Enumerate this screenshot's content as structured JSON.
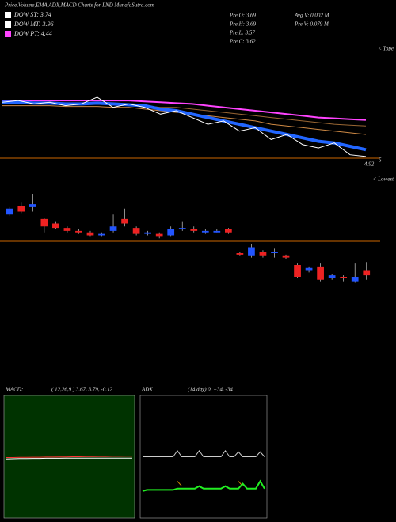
{
  "title": "Price,Volume,EMA,ADX,MACD Charts for LND MunafaSutra.com",
  "legend": [
    {
      "label": "DOW ST: 3.74",
      "color": "#ffffff"
    },
    {
      "label": "DOW MT: 3.96",
      "color": "#ffffff"
    },
    {
      "label": "DOW PT: 4.44",
      "color": "#ff44ff"
    }
  ],
  "info": [
    "Pre  O: 3.69",
    "Pre  H: 3.69",
    "Pre  L: 3.57",
    "Pre  C: 3.62",
    "Avg  V: 0.002  M",
    "Pre   V: 0.079  M"
  ],
  "chart_data": [
    {
      "type": "line",
      "label": "< Tope",
      "ylim": [
        4.85,
        5.55
      ],
      "hline": {
        "value": 4.92,
        "label": "4.92",
        "color": "#cc6600"
      },
      "annotation": "5",
      "series": [
        {
          "color": "#ff44ff",
          "width": 2,
          "values": [
            5.26,
            5.26,
            5.26,
            5.26,
            5.26,
            5.26,
            5.26,
            5.26,
            5.26,
            5.255,
            5.25,
            5.245,
            5.24,
            5.23,
            5.22,
            5.21,
            5.2,
            5.19,
            5.18,
            5.17,
            5.16,
            5.155,
            5.15,
            5.145
          ]
        },
        {
          "color": "#996633",
          "width": 1,
          "values": [
            5.24,
            5.24,
            5.24,
            5.24,
            5.24,
            5.24,
            5.24,
            5.235,
            5.23,
            5.23,
            5.22,
            5.22,
            5.21,
            5.2,
            5.19,
            5.18,
            5.17,
            5.16,
            5.15,
            5.14,
            5.13,
            5.12,
            5.115,
            5.11
          ]
        },
        {
          "color": "#cc8844",
          "width": 1,
          "values": [
            5.23,
            5.23,
            5.23,
            5.23,
            5.225,
            5.225,
            5.225,
            5.22,
            5.22,
            5.21,
            5.2,
            5.19,
            5.18,
            5.17,
            5.16,
            5.15,
            5.14,
            5.12,
            5.11,
            5.1,
            5.09,
            5.08,
            5.07,
            5.06
          ]
        },
        {
          "color": "#2266ff",
          "width": 4,
          "values": [
            5.25,
            5.25,
            5.245,
            5.245,
            5.24,
            5.24,
            5.245,
            5.24,
            5.235,
            5.23,
            5.21,
            5.2,
            5.18,
            5.16,
            5.14,
            5.12,
            5.1,
            5.08,
            5.06,
            5.04,
            5.02,
            5.01,
            4.99,
            4.97
          ]
        },
        {
          "color": "#ffffff",
          "width": 1,
          "values": [
            5.25,
            5.26,
            5.24,
            5.25,
            5.23,
            5.24,
            5.28,
            5.22,
            5.24,
            5.22,
            5.18,
            5.2,
            5.16,
            5.12,
            5.14,
            5.08,
            5.1,
            5.03,
            5.06,
            5,
            4.98,
            5.01,
            4.94,
            4.93
          ]
        }
      ]
    },
    {
      "type": "candlestick",
      "label": "< Lowest",
      "ylim": [
        3.4,
        4.2
      ],
      "hline": {
        "value": 3.8,
        "color": "#cc6600"
      },
      "up_color": "#2255ff",
      "down_color": "#ee2222",
      "open": [
        3.98,
        4.04,
        4.03,
        3.95,
        3.92,
        3.89,
        3.87,
        3.86,
        3.84,
        3.87,
        3.95,
        3.89,
        3.85,
        3.85,
        3.84,
        3.88,
        3.88,
        3.86,
        3.86,
        3.88,
        3.72,
        3.7,
        3.73,
        3.72,
        3.7,
        3.64,
        3.6,
        3.63,
        3.55,
        3.56,
        3.53,
        3.6
      ],
      "high": [
        4.03,
        4.06,
        4.12,
        3.96,
        3.93,
        3.9,
        3.88,
        3.87,
        3.86,
        3.98,
        4.02,
        3.9,
        3.87,
        3.86,
        3.9,
        3.93,
        3.9,
        3.88,
        3.88,
        3.89,
        3.73,
        3.78,
        3.74,
        3.75,
        3.71,
        3.65,
        3.63,
        3.65,
        3.58,
        3.57,
        3.65,
        3.66
      ],
      "low": [
        3.97,
        3.99,
        4,
        3.86,
        3.88,
        3.86,
        3.85,
        3.83,
        3.83,
        3.86,
        3.9,
        3.84,
        3.84,
        3.82,
        3.83,
        3.87,
        3.86,
        3.85,
        3.86,
        3.85,
        3.7,
        3.69,
        3.69,
        3.69,
        3.68,
        3.55,
        3.59,
        3.53,
        3.54,
        3.53,
        3.52,
        3.54
      ],
      "close": [
        4.02,
        4,
        4.05,
        3.9,
        3.89,
        3.87,
        3.86,
        3.84,
        3.85,
        3.9,
        3.92,
        3.85,
        3.86,
        3.83,
        3.88,
        3.89,
        3.87,
        3.87,
        3.87,
        3.86,
        3.71,
        3.76,
        3.7,
        3.73,
        3.69,
        3.56,
        3.62,
        3.54,
        3.57,
        3.55,
        3.56,
        3.57
      ]
    },
    {
      "type": "line",
      "title": "MACD:",
      "subtitle": "( 12,26,9 ) 3.67, 3.79, -0.12",
      "ylim": [
        0,
        7.5
      ],
      "background": "#003300",
      "series": [
        {
          "color": "#ffffff",
          "width": 1,
          "values": [
            3.62,
            3.63,
            3.64,
            3.64,
            3.65,
            3.65,
            3.66,
            3.66,
            3.66,
            3.67,
            3.67,
            3.67,
            3.67,
            3.67,
            3.67,
            3.67,
            3.67,
            3.67,
            3.67,
            3.67
          ]
        },
        {
          "color": "#ff3333",
          "width": 1,
          "values": [
            3.7,
            3.7,
            3.71,
            3.71,
            3.72,
            3.72,
            3.73,
            3.73,
            3.74,
            3.74,
            3.75,
            3.75,
            3.76,
            3.76,
            3.77,
            3.77,
            3.78,
            3.78,
            3.79,
            3.79
          ]
        }
      ]
    },
    {
      "type": "line",
      "title": "ADX",
      "subtitle": "(14  day) 0,  +34,  -34",
      "ylim": [
        0,
        100
      ],
      "background": "#000000",
      "series": [
        {
          "color": "#cccccc",
          "width": 1,
          "values": [
            50,
            50,
            50,
            50,
            50,
            50,
            50,
            50,
            55,
            50,
            50,
            50,
            50,
            55,
            50,
            50,
            50,
            50,
            50,
            55,
            50,
            50,
            54,
            50,
            50,
            50,
            50,
            54,
            50
          ]
        },
        {
          "color": "#cc8800",
          "width": 1,
          "values": [
            null,
            null,
            null,
            null,
            null,
            null,
            null,
            null,
            30,
            26,
            null,
            null,
            null,
            null,
            null,
            null,
            null,
            null,
            null,
            null,
            null,
            null,
            30,
            26,
            null,
            null,
            null,
            null,
            null
          ]
        },
        {
          "color": "#22ee22",
          "width": 2,
          "values": [
            22,
            23,
            23,
            23,
            23,
            23,
            23,
            23,
            24,
            24,
            24,
            24,
            24,
            26,
            24,
            24,
            24,
            24,
            24,
            26,
            24,
            24,
            24,
            28,
            24,
            24,
            24,
            30,
            24
          ]
        }
      ]
    }
  ]
}
